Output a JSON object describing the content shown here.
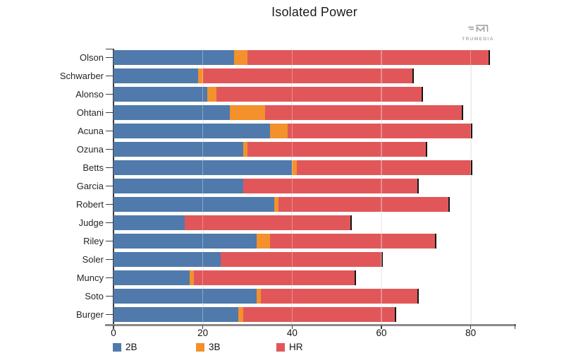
{
  "title": "Isolated Power",
  "brand": {
    "label": "TRUMEDIA"
  },
  "chart_data": {
    "type": "bar",
    "orientation": "horizontal",
    "stacked": true,
    "title": "Isolated Power",
    "categories": [
      "Olson",
      "Schwarber",
      "Alonso",
      "Ohtani",
      "Acuna",
      "Ozuna",
      "Betts",
      "Garcia",
      "Robert",
      "Judge",
      "Riley",
      "Soler",
      "Muncy",
      "Soto",
      "Burger"
    ],
    "series": [
      {
        "name": "2B",
        "color": "#4f7aab",
        "values": [
          27,
          19,
          21,
          26,
          35,
          29,
          40,
          29,
          36,
          16,
          32,
          24,
          17,
          32,
          28
        ]
      },
      {
        "name": "3B",
        "color": "#f3912d",
        "values": [
          3,
          1,
          2,
          8,
          4,
          1,
          1,
          0,
          1,
          0,
          3,
          0,
          1,
          1,
          1
        ]
      },
      {
        "name": "HR",
        "color": "#e15759",
        "values": [
          54,
          47,
          46,
          44,
          41,
          40,
          39,
          39,
          38,
          37,
          37,
          36,
          36,
          35,
          34
        ]
      }
    ],
    "totals": [
      84,
      67,
      69,
      78,
      80,
      70,
      80,
      68,
      75,
      53,
      72,
      60,
      54,
      68,
      63
    ],
    "xlim": [
      0,
      90
    ],
    "x_ticks": [
      0,
      20,
      40,
      60,
      80
    ],
    "grid": true,
    "legend_position": "bottom",
    "bar_end_stroke": "#151515"
  },
  "colors": {
    "background": "#ffffff",
    "grid": "#ececec",
    "x_axis": "#8a8a8a",
    "y_axis": "#3d3d3d",
    "title_text": "#1b1b1b",
    "brand_text": "#a9a9a9"
  }
}
